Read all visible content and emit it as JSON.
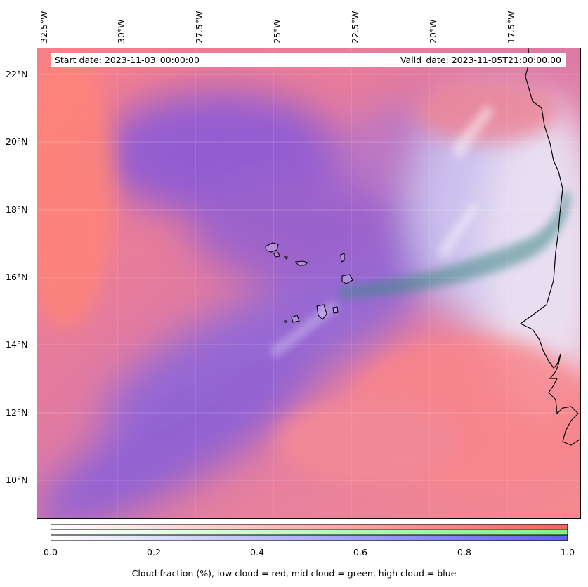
{
  "header": {
    "start_date": "Start date: 2023-11-03_00:00:00",
    "valid_date": "Valid_date: 2023-11-05T21:00:00.00"
  },
  "map": {
    "longitude_labels": [
      "32.5°W",
      "30°W",
      "27.5°W",
      "25°W",
      "22.5°W",
      "20°W",
      "17.5°W"
    ],
    "latitude_labels": [
      "22°N",
      "20°N",
      "18°N",
      "16°N",
      "14°N",
      "12°N",
      "10°N"
    ],
    "lon_range": [
      -32.5,
      -15.5
    ],
    "lat_range": [
      9.0,
      22.8
    ],
    "layers": [
      {
        "name": "low cloud",
        "color": "#ff6b6b"
      },
      {
        "name": "mid cloud",
        "color": "#66ee66"
      },
      {
        "name": "high cloud",
        "color": "#6b6bff"
      }
    ],
    "icons": [
      "coastline",
      "cape-verde-islands"
    ]
  },
  "colorbar": {
    "ticks": [
      "0.0",
      "0.2",
      "0.4",
      "0.6",
      "0.8",
      "1.0"
    ],
    "caption": "Cloud fraction (%), low cloud = red, mid cloud = green, high cloud = blue",
    "colors": {
      "low": "#f26262",
      "mid": "#80f080",
      "high": "#6060ee"
    }
  }
}
